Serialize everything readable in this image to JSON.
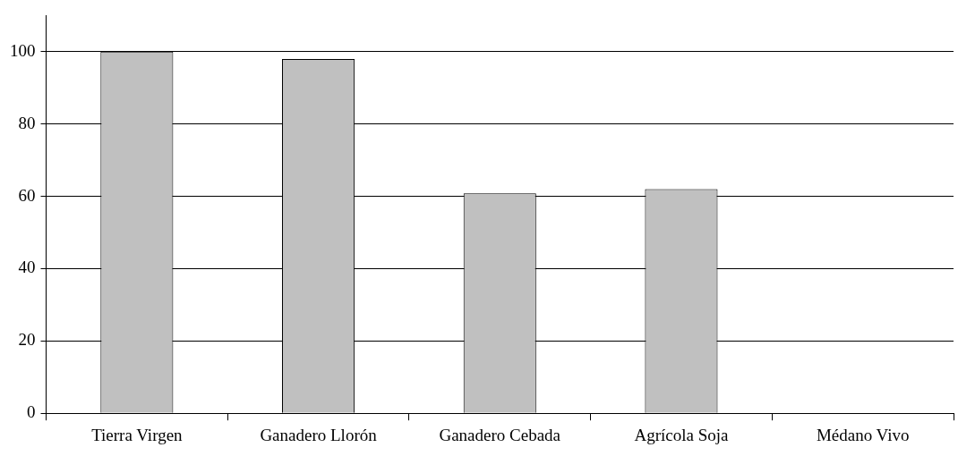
{
  "chart_data": {
    "type": "bar",
    "categories": [
      "Tierra Virgen",
      "Ganadero Llorón",
      "Ganadero Cebada",
      "Agrícola Soja",
      "Médano Vivo"
    ],
    "values": [
      100,
      98,
      60.8,
      62,
      0
    ],
    "color": "#c0c0c0",
    "ylim": [
      0,
      110
    ],
    "yticks": [
      0,
      20,
      40,
      60,
      80,
      100
    ],
    "grid": "y",
    "legend": false
  }
}
